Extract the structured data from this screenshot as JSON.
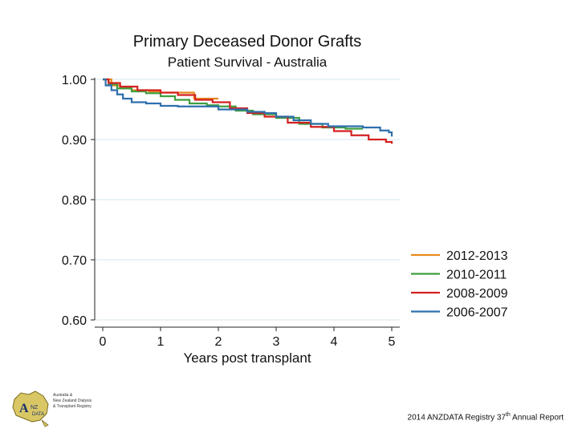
{
  "chart_data": {
    "type": "line",
    "title": "Primary Deceased Donor Grafts",
    "subtitle": "Patient Survival - Australia",
    "xlabel": "Years post transplant",
    "ylabel": "",
    "xlim": [
      0,
      5
    ],
    "ylim": [
      0.6,
      1.0
    ],
    "xticks": [
      "0",
      "1",
      "2",
      "3",
      "4",
      "5"
    ],
    "yticks": [
      "1.00",
      "0.90",
      "0.80",
      "0.70",
      "0.60"
    ],
    "grid": "horizontal",
    "legend_position": "right",
    "series": [
      {
        "name": "2012-2013",
        "color": "#e8891f",
        "x": [
          0,
          0.15,
          0.3,
          0.5,
          0.8,
          1.0,
          1.2,
          1.55,
          1.58,
          2.0
        ],
        "y": [
          1.0,
          0.99,
          0.985,
          0.982,
          0.98,
          0.978,
          0.978,
          0.978,
          0.968,
          0.968
        ]
      },
      {
        "name": "2010-2011",
        "color": "#3f9e3f",
        "x": [
          0,
          0.1,
          0.25,
          0.5,
          0.75,
          1.0,
          1.25,
          1.5,
          1.8,
          2.0,
          2.3,
          2.6,
          3.0,
          3.4,
          3.8,
          4.2,
          4.5
        ],
        "y": [
          1.0,
          0.992,
          0.985,
          0.98,
          0.977,
          0.972,
          0.966,
          0.96,
          0.957,
          0.955,
          0.948,
          0.942,
          0.936,
          0.926,
          0.92,
          0.918,
          0.918
        ]
      },
      {
        "name": "2008-2009",
        "color": "#d42020",
        "x": [
          0,
          0.1,
          0.3,
          0.6,
          1.0,
          1.3,
          1.6,
          1.9,
          2.2,
          2.5,
          2.8,
          3.2,
          3.6,
          4.0,
          4.3,
          4.6,
          4.9,
          5.0
        ],
        "y": [
          1.0,
          0.994,
          0.988,
          0.982,
          0.978,
          0.974,
          0.966,
          0.962,
          0.952,
          0.944,
          0.938,
          0.928,
          0.921,
          0.914,
          0.907,
          0.9,
          0.896,
          0.893
        ]
      },
      {
        "name": "2006-2007",
        "color": "#2e6fad",
        "x": [
          0,
          0.05,
          0.15,
          0.25,
          0.35,
          0.5,
          0.75,
          1.0,
          1.3,
          1.6,
          2.0,
          2.5,
          2.8,
          3.0,
          3.3,
          3.6,
          3.9,
          4.2,
          4.5,
          4.8,
          4.95,
          5.0
        ],
        "y": [
          1.0,
          0.99,
          0.982,
          0.975,
          0.968,
          0.962,
          0.96,
          0.956,
          0.955,
          0.955,
          0.95,
          0.946,
          0.944,
          0.938,
          0.932,
          0.926,
          0.922,
          0.922,
          0.92,
          0.915,
          0.912,
          0.905
        ]
      }
    ]
  },
  "footer": {
    "text": "2014 ANZDATA Registry 37",
    "sup": "th",
    "text_after": " Annual Report"
  },
  "logo": {
    "letters": "ANZDATA",
    "caption_lines": [
      "Australia &",
      "New Zealand Dialysis",
      "& Transplant Registry"
    ]
  }
}
